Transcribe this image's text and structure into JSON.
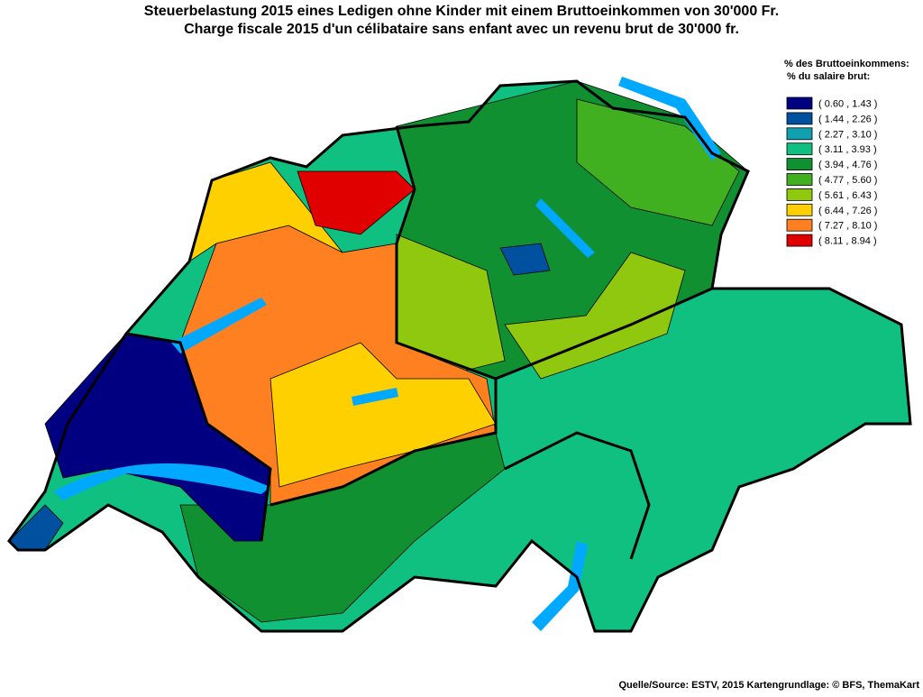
{
  "title": {
    "line1": "Steuerbelastung 2015 eines Ledigen ohne Kinder mit einem Bruttoeinkommen von 30'000 Fr.",
    "line2": "Charge fiscale 2015 d'un célibataire sans enfant avec un revenu brut de 30'000 fr."
  },
  "legend": {
    "title1": "% des Bruttoeinkommens:",
    "title2": "% du salaire brut:",
    "items": [
      {
        "label": "( 0.60 , 1.43 )",
        "color": "#000080"
      },
      {
        "label": "( 1.44 , 2.26 )",
        "color": "#0050a0"
      },
      {
        "label": "( 2.27 , 3.10 )",
        "color": "#10a0b0"
      },
      {
        "label": "( 3.11 , 3.93 )",
        "color": "#10c080"
      },
      {
        "label": "( 3.94 , 4.76 )",
        "color": "#109030"
      },
      {
        "label": "( 4.77 , 5.60 )",
        "color": "#40b020"
      },
      {
        "label": "( 5.61 , 6.43 )",
        "color": "#90c810"
      },
      {
        "label": "( 6.44 , 7.26 )",
        "color": "#ffd000"
      },
      {
        "label": "( 7.27 , 8.10 )",
        "color": "#ff8020"
      },
      {
        "label": "( 8.11 , 8.94 )",
        "color": "#e00000"
      }
    ]
  },
  "source": "Quelle/Source: ESTV, 2015 Kartengrundlage: © BFS, ThemaKart"
}
